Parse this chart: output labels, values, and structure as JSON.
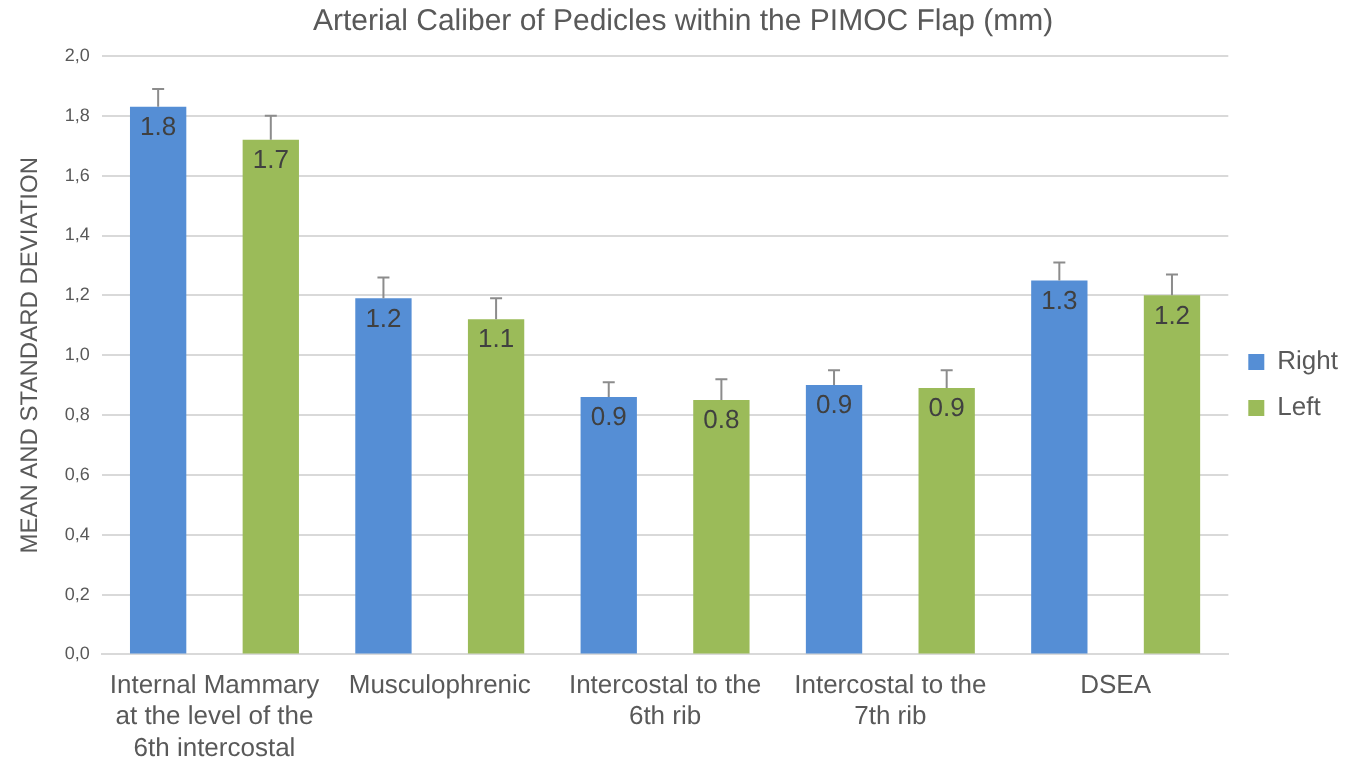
{
  "chart_data": {
    "type": "bar",
    "title": "Arterial Caliber of Pedicles within the PIMOC Flap (mm)",
    "ylabel": "MEAN AND STANDARD DEVIATION",
    "categories": [
      "Internal Mammary at the level of the 6th intercostal",
      "Musculophrenic",
      "Intercostal to the 6th rib",
      "Intercostal to the 7th rib",
      "DSEA"
    ],
    "series": [
      {
        "name": "Right",
        "color": "#558ed5",
        "values": [
          1.83,
          1.19,
          0.86,
          0.9,
          1.25
        ],
        "errors": [
          [
            1.83,
            1.89
          ],
          [
            1.19,
            1.26
          ],
          [
            0.86,
            0.91
          ],
          [
            0.9,
            0.95
          ],
          [
            1.25,
            1.31
          ]
        ],
        "value_labels": [
          "1.8",
          "1.2",
          "0.9",
          "0.9",
          "1.3"
        ]
      },
      {
        "name": "Left",
        "color": "#9bbb59",
        "values": [
          1.72,
          1.12,
          0.85,
          0.89,
          1.2
        ],
        "errors": [
          [
            1.72,
            1.8
          ],
          [
            1.12,
            1.19
          ],
          [
            0.85,
            0.92
          ],
          [
            0.89,
            0.95
          ],
          [
            1.2,
            1.27
          ]
        ],
        "value_labels": [
          "1.7",
          "1.1",
          "0.8",
          "0.9",
          "1.2"
        ]
      }
    ],
    "ylim": [
      0,
      2
    ],
    "yticks": [
      {
        "value": 0,
        "label": "0,0"
      },
      {
        "value": 0.2,
        "label": "0,2"
      },
      {
        "value": 0.4,
        "label": "0,4"
      },
      {
        "value": 0.6,
        "label": "0,6"
      },
      {
        "value": 0.8,
        "label": "0,8"
      },
      {
        "value": 1,
        "label": "1,0"
      },
      {
        "value": 1.2,
        "label": "1,2"
      },
      {
        "value": 1.4,
        "label": "1,4"
      },
      {
        "value": 1.6,
        "label": "1,6"
      },
      {
        "value": 1.8,
        "label": "1,8"
      },
      {
        "value": 2,
        "label": "2,0"
      }
    ],
    "grid": "y",
    "legend": "right"
  }
}
